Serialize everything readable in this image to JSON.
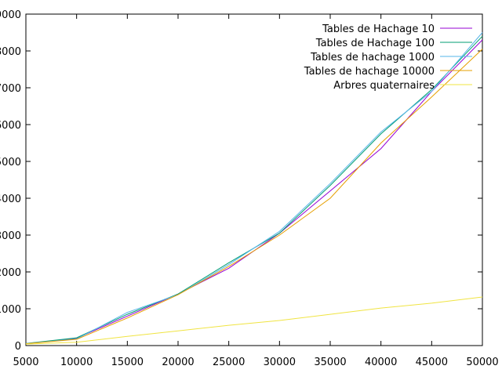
{
  "chart_data": {
    "type": "line",
    "title": "",
    "xlabel": "",
    "ylabel": "",
    "xlim": [
      5000,
      50000
    ],
    "ylim": [
      0,
      9000
    ],
    "xticks": [
      5000,
      10000,
      15000,
      20000,
      25000,
      30000,
      35000,
      40000,
      45000,
      50000
    ],
    "yticks": [
      0,
      1000,
      2000,
      3000,
      4000,
      5000,
      6000,
      7000,
      8000,
      9000
    ],
    "grid": false,
    "legend_position": "top-right",
    "x": [
      5000,
      10000,
      15000,
      20000,
      25000,
      30000,
      35000,
      40000,
      45000,
      50000
    ],
    "series": [
      {
        "name": "Tables de Hachage 10",
        "color": "#9400d3",
        "values": [
          50,
          200,
          800,
          1400,
          2100,
          3050,
          4200,
          5350,
          6900,
          8300
        ]
      },
      {
        "name": "Tables de Hachage 100",
        "color": "#009e73",
        "values": [
          60,
          210,
          850,
          1400,
          2250,
          3050,
          4350,
          5750,
          6950,
          8400
        ]
      },
      {
        "name": "Tables de hachage 1000",
        "color": "#56b4e9",
        "values": [
          55,
          180,
          900,
          1380,
          2200,
          3100,
          4400,
          5800,
          6900,
          8500
        ]
      },
      {
        "name": "Tables de hachage 10000",
        "color": "#e69f00",
        "values": [
          50,
          170,
          750,
          1380,
          2150,
          3000,
          4000,
          5500,
          6750,
          8050
        ]
      },
      {
        "name": "Arbres quaternaires",
        "color": "#f0e442",
        "values": [
          40,
          90,
          250,
          400,
          550,
          680,
          850,
          1020,
          1150,
          1320
        ]
      }
    ]
  }
}
